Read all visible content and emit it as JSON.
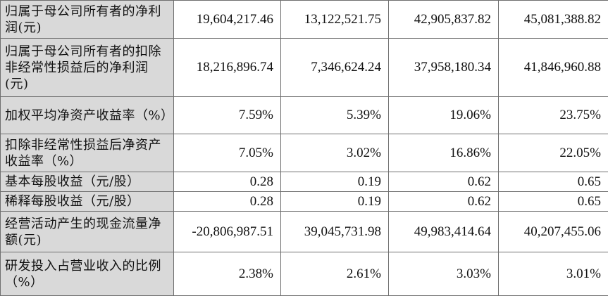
{
  "table": {
    "rows": [
      {
        "label": "归属于母公司所有者的净利润(元)",
        "values": [
          "19,604,217.46",
          "13,122,521.75",
          "42,905,837.82",
          "45,081,388.82"
        ]
      },
      {
        "label": "归属于母公司所有者的扣除非经常性损益后的净利润(元)",
        "values": [
          "18,216,896.74",
          "7,346,624.24",
          "37,958,180.34",
          "41,846,960.88"
        ]
      },
      {
        "label": "加权平均净资产收益率（%）",
        "values": [
          "7.59%",
          "5.39%",
          "19.06%",
          "23.75%"
        ]
      },
      {
        "label": "扣除非经常性损益后净资产收益率（%）",
        "values": [
          "7.05%",
          "3.02%",
          "16.86%",
          "22.05%"
        ]
      },
      {
        "label": "基本每股收益（元/股）",
        "values": [
          "0.28",
          "0.19",
          "0.62",
          "0.65"
        ]
      },
      {
        "label": "稀释每股收益（元/股）",
        "values": [
          "0.28",
          "0.19",
          "0.62",
          "0.65"
        ]
      },
      {
        "label": "经营活动产生的现金流量净额(元)",
        "values": [
          "-20,806,987.51",
          "39,045,731.98",
          "49,983,414.64",
          "40,207,455.06"
        ]
      },
      {
        "label": "研发投入占营业收入的比例（%）",
        "values": [
          "2.38%",
          "2.61%",
          "3.03%",
          "3.01%"
        ]
      }
    ]
  }
}
